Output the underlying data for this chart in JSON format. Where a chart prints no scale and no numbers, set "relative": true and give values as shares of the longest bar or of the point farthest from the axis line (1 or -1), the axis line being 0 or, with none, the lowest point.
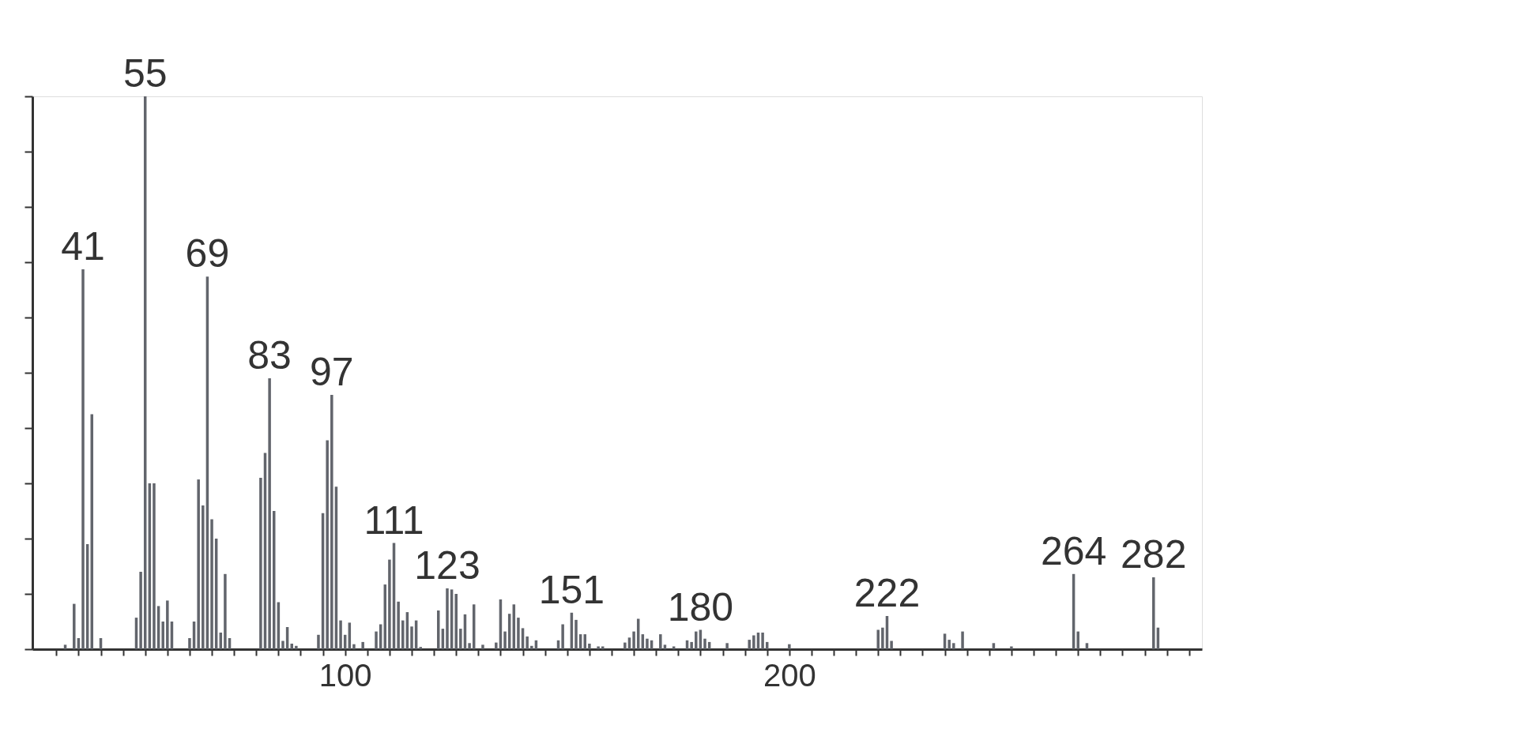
{
  "chart_data": {
    "type": "bar",
    "relative": true,
    "color": "#62656c",
    "grid": false,
    "tick_labels": "x",
    "x": [
      37,
      39,
      40,
      41,
      42,
      43,
      45,
      53,
      54,
      55,
      56,
      57,
      58,
      59,
      60,
      61,
      65,
      66,
      67,
      68,
      69,
      70,
      71,
      72,
      73,
      74,
      81,
      82,
      83,
      84,
      85,
      86,
      87,
      88,
      89,
      94,
      95,
      96,
      97,
      98,
      99,
      100,
      101,
      102,
      104,
      107,
      108,
      109,
      110,
      111,
      112,
      113,
      114,
      115,
      116,
      117,
      121,
      122,
      123,
      124,
      125,
      126,
      127,
      128,
      129,
      131,
      134,
      135,
      136,
      137,
      138,
      139,
      140,
      141,
      142,
      143,
      148,
      149,
      151,
      152,
      153,
      154,
      155,
      157,
      158,
      163,
      164,
      165,
      166,
      167,
      168,
      169,
      171,
      172,
      174,
      177,
      178,
      179,
      180,
      181,
      182,
      186,
      191,
      192,
      193,
      194,
      195,
      200,
      220,
      221,
      222,
      223,
      235,
      236,
      237,
      239,
      246,
      250,
      264,
      265,
      267,
      282,
      283
    ],
    "values": [
      0.008,
      0.082,
      0.02,
      0.687,
      0.19,
      0.425,
      0.02,
      0.057,
      0.14,
      1.0,
      0.3,
      0.3,
      0.078,
      0.05,
      0.088,
      0.05,
      0.02,
      0.05,
      0.307,
      0.26,
      0.674,
      0.235,
      0.2,
      0.03,
      0.136,
      0.02,
      0.31,
      0.355,
      0.49,
      0.25,
      0.085,
      0.015,
      0.04,
      0.01,
      0.006,
      0.026,
      0.246,
      0.378,
      0.46,
      0.294,
      0.052,
      0.026,
      0.048,
      0.009,
      0.013,
      0.032,
      0.045,
      0.117,
      0.162,
      0.192,
      0.086,
      0.052,
      0.067,
      0.041,
      0.052,
      0.004,
      0.07,
      0.037,
      0.11,
      0.108,
      0.1,
      0.037,
      0.063,
      0.011,
      0.081,
      0.008,
      0.012,
      0.09,
      0.032,
      0.064,
      0.081,
      0.057,
      0.038,
      0.023,
      0.006,
      0.016,
      0.016,
      0.045,
      0.066,
      0.053,
      0.027,
      0.027,
      0.01,
      0.005,
      0.005,
      0.012,
      0.021,
      0.032,
      0.055,
      0.027,
      0.019,
      0.016,
      0.027,
      0.008,
      0.005,
      0.016,
      0.013,
      0.032,
      0.035,
      0.019,
      0.013,
      0.011,
      0.017,
      0.025,
      0.03,
      0.03,
      0.013,
      0.009,
      0.035,
      0.039,
      0.06,
      0.015,
      0.028,
      0.017,
      0.011,
      0.032,
      0.011,
      0.005,
      0.136,
      0.032,
      0.011,
      0.13,
      0.039
    ],
    "xlim": [
      30.5,
      292
    ],
    "xticks": [
      {
        "value": 35,
        "label": null
      },
      {
        "value": 40,
        "label": null
      },
      {
        "value": 45,
        "label": null
      },
      {
        "value": 50,
        "label": null
      },
      {
        "value": 55,
        "label": null
      },
      {
        "value": 60,
        "label": null
      },
      {
        "value": 65,
        "label": null
      },
      {
        "value": 70,
        "label": null
      },
      {
        "value": 75,
        "label": null
      },
      {
        "value": 80,
        "label": null
      },
      {
        "value": 85,
        "label": null
      },
      {
        "value": 90,
        "label": null
      },
      {
        "value": 95,
        "label": null
      },
      100,
      {
        "value": 105,
        "label": null
      },
      {
        "value": 110,
        "label": null
      },
      {
        "value": 115,
        "label": null
      },
      {
        "value": 120,
        "label": null
      },
      {
        "value": 125,
        "label": null
      },
      {
        "value": 130,
        "label": null
      },
      {
        "value": 135,
        "label": null
      },
      {
        "value": 140,
        "label": null
      },
      {
        "value": 145,
        "label": null
      },
      {
        "value": 150,
        "label": null
      },
      {
        "value": 155,
        "label": null
      },
      {
        "value": 160,
        "label": null
      },
      {
        "value": 165,
        "label": null
      },
      {
        "value": 170,
        "label": null
      },
      {
        "value": 175,
        "label": null
      },
      {
        "value": 180,
        "label": null
      },
      {
        "value": 185,
        "label": null
      },
      {
        "value": 190,
        "label": null
      },
      {
        "value": 195,
        "label": null
      },
      200,
      {
        "value": 205,
        "label": null
      },
      {
        "value": 210,
        "label": null
      },
      {
        "value": 215,
        "label": null
      },
      {
        "value": 220,
        "label": null
      },
      {
        "value": 225,
        "label": null
      },
      {
        "value": 230,
        "label": null
      },
      {
        "value": 235,
        "label": null
      },
      {
        "value": 240,
        "label": null
      },
      {
        "value": 245,
        "label": null
      },
      {
        "value": 250,
        "label": null
      },
      {
        "value": 255,
        "label": null
      },
      {
        "value": 260,
        "label": null
      },
      {
        "value": 265,
        "label": null
      },
      {
        "value": 270,
        "label": null
      },
      {
        "value": 275,
        "label": null
      },
      {
        "value": 280,
        "label": null
      },
      {
        "value": 285,
        "label": null
      },
      {
        "value": 290,
        "label": null
      }
    ],
    "annotations": [
      {
        "text": "41",
        "x": 41,
        "y": 0.687
      },
      {
        "text": "55",
        "x": 55,
        "y": 1.0
      },
      {
        "text": "69",
        "x": 69,
        "y": 0.674
      },
      {
        "text": "83",
        "x": 83,
        "y": 0.49
      },
      {
        "text": "97",
        "x": 97,
        "y": 0.46
      },
      {
        "text": "111",
        "x": 111,
        "y": 0.192
      },
      {
        "text": "123",
        "x": 123,
        "y": 0.11
      },
      {
        "text": "151",
        "x": 151,
        "y": 0.066
      },
      {
        "text": "180",
        "x": 180,
        "y": 0.035
      },
      {
        "text": "222",
        "x": 222,
        "y": 0.06
      },
      {
        "text": "264",
        "x": 264,
        "y": 0.136
      },
      {
        "text": "282",
        "x": 282,
        "y": 0.13
      }
    ]
  }
}
